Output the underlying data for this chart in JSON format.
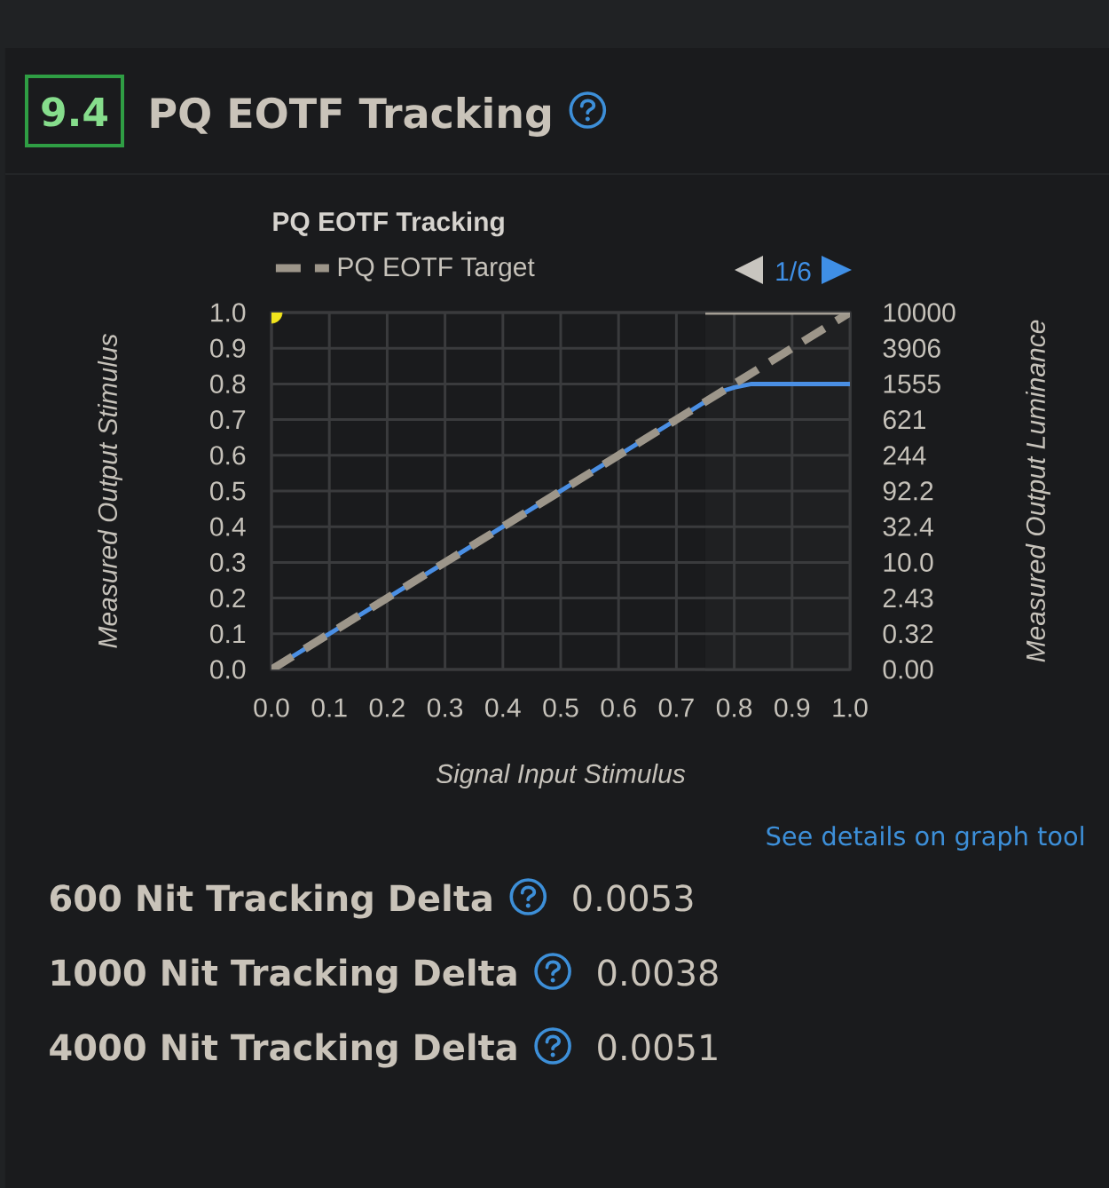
{
  "chart_data": {
    "type": "line",
    "title": "PQ EOTF Tracking",
    "xlabel": "Signal Input Stimulus",
    "ylabel": "Measured Output Stimulus",
    "series": [
      {
        "color": "#4a8fe4",
        "x": [
          0,
          0.25,
          0.5,
          0.75,
          0.78,
          0.8,
          0.83,
          1.0
        ],
        "values": [
          0,
          0.25,
          0.5,
          0.75,
          0.78,
          0.79,
          0.8,
          0.8
        ]
      },
      {
        "name": "PQ EOTF Target",
        "color": "#9d968a",
        "line_style": "dashed",
        "x": [
          0,
          1.0
        ],
        "values": [
          0,
          1.0
        ]
      },
      {
        "color": "#a49e94",
        "x": [
          0.75,
          1.0
        ],
        "values": [
          1.0,
          1.0
        ]
      },
      {
        "type": "scatter",
        "color": "#f2e51d",
        "x": [
          0
        ],
        "values": [
          1.0
        ]
      }
    ],
    "xlim": [
      0,
      1
    ],
    "ylim": [
      0,
      1
    ],
    "xticks": [
      {
        "value": 0,
        "label": "0.0"
      },
      0.1,
      0.2,
      0.3,
      0.4,
      0.5,
      0.6,
      0.7,
      0.8,
      0.9,
      {
        "value": 1,
        "label": "1.0"
      }
    ],
    "yticks": [
      {
        "value": 0,
        "label": "0.0"
      },
      0.1,
      0.2,
      0.3,
      0.4,
      0.5,
      0.6,
      0.7,
      0.8,
      0.9,
      {
        "value": 1,
        "label": "1.0"
      }
    ],
    "bands": [
      {
        "axis": "x",
        "from": 0.75,
        "to": 1.0,
        "color": "#1f2022"
      }
    ],
    "grid": true,
    "legend": "top left",
    "line_style": "solid",
    "annotations": [
      "9.4",
      "PQ EOTF Tracking",
      "1/6",
      "See details on graph tool",
      "600 Nit Tracking Delta",
      "0.0053",
      "1000 Nit Tracking Delta",
      "0.0038",
      "4000 Nit Tracking Delta",
      "0.0051",
      "10000",
      "3906",
      "1555",
      "621",
      "244",
      "92.2",
      "32.4",
      "10.0",
      "2.43",
      "0.32",
      "0.00",
      "Measured Output Luminance"
    ]
  }
}
